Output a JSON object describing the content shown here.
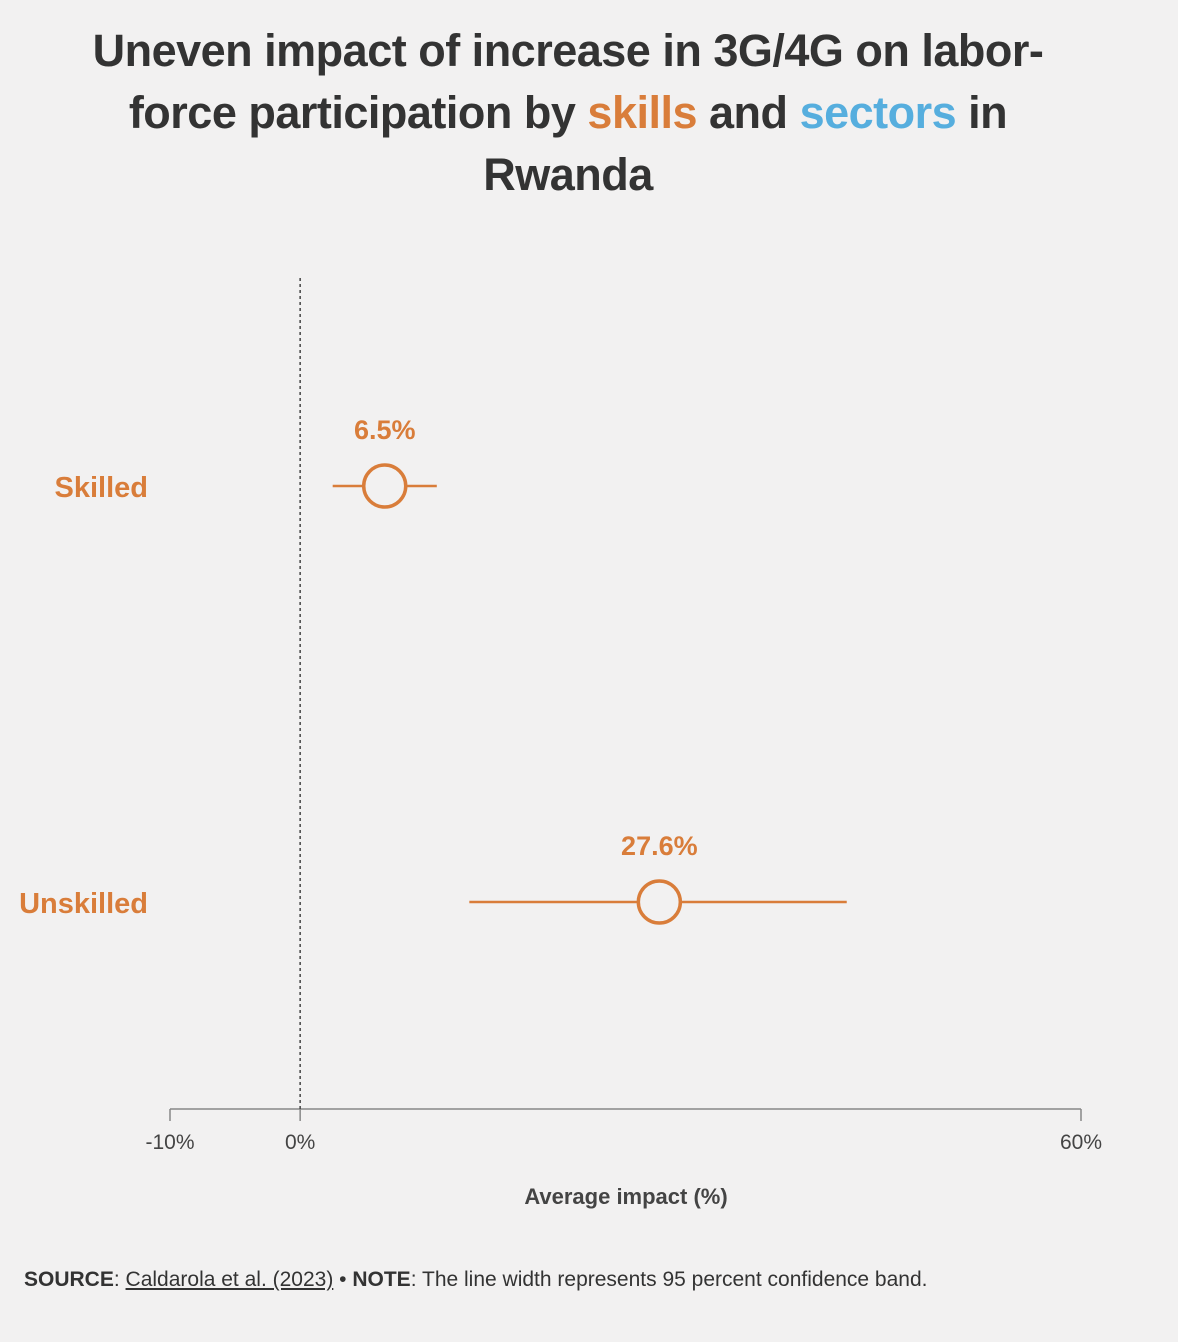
{
  "title": {
    "part1": "Uneven impact of increase in 3G/4G on labor-force participation by",
    "skills": "skills",
    "and": "and",
    "sectors": "sectors",
    "part2": "in Rwanda"
  },
  "colors": {
    "skills": "#d97d3a",
    "sectors": "#56aede",
    "axis": "#888888",
    "text": "#333333",
    "background": "#f2f1f1"
  },
  "chart_data": {
    "type": "scatter",
    "subtype": "dot-with-confidence-interval",
    "xlabel": "Average impact (%)",
    "xlim": [
      -10,
      60
    ],
    "xticks": [
      {
        "value": -10,
        "label": "-10%"
      },
      {
        "value": 0,
        "label": "0%"
      },
      {
        "value": 60,
        "label": "60%"
      }
    ],
    "reference_line": {
      "value": 0,
      "style": "dotted"
    },
    "series": [
      {
        "name": "Skilled",
        "value": 6.5,
        "ci_low": 2.5,
        "ci_high": 10.5,
        "label": "6.5%"
      },
      {
        "name": "Unskilled",
        "value": 27.6,
        "ci_low": 13.0,
        "ci_high": 42.0,
        "label": "27.6%"
      }
    ]
  },
  "footer": {
    "source_label": "SOURCE",
    "source_text": "Caldarola et al. (2023)",
    "separator": " • ",
    "note_label": "NOTE",
    "note_text": "The line width represents 95 percent confidence band."
  }
}
